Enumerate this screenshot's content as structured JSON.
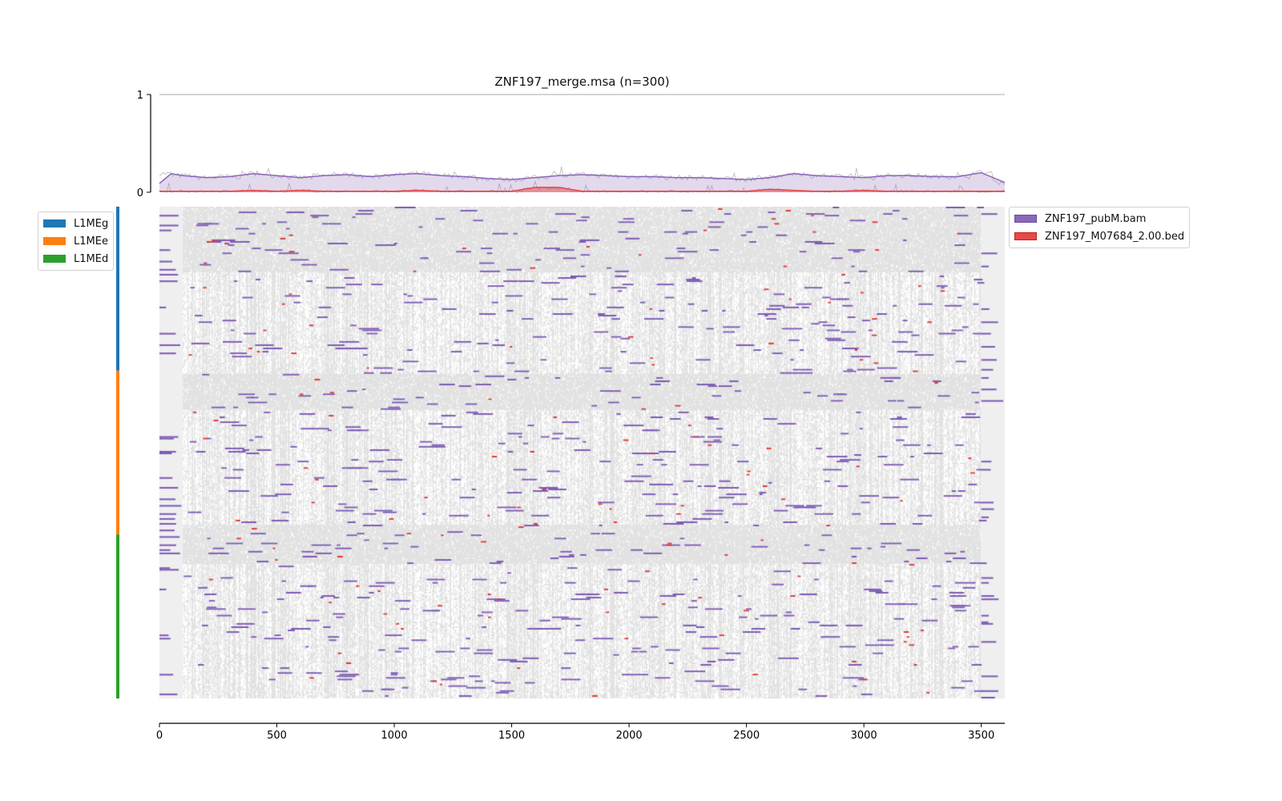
{
  "chart_data": {
    "type": "heatmap",
    "title": "ZNF197_merge.msa (n=300)",
    "n_sequences": 300,
    "xlim": [
      0,
      3600
    ],
    "xticks": [
      "0",
      "500",
      "1000",
      "1500",
      "2000",
      "2500",
      "3000",
      "3500"
    ],
    "profile": {
      "ylim": [
        0,
        1
      ],
      "yticks": [
        "0",
        "1"
      ],
      "x": [
        0,
        50,
        100,
        200,
        300,
        400,
        500,
        600,
        700,
        800,
        900,
        1000,
        1100,
        1200,
        1300,
        1400,
        1500,
        1600,
        1700,
        1800,
        1900,
        2000,
        2100,
        2200,
        2300,
        2400,
        2500,
        2600,
        2700,
        2800,
        2900,
        3000,
        3100,
        3200,
        3300,
        3400,
        3500,
        3600
      ],
      "series": [
        {
          "name": "ZNF197_pubM.bam",
          "color": "#8a67b8",
          "values": [
            0.09,
            0.19,
            0.17,
            0.15,
            0.16,
            0.19,
            0.17,
            0.15,
            0.17,
            0.18,
            0.16,
            0.18,
            0.19,
            0.17,
            0.16,
            0.14,
            0.13,
            0.15,
            0.17,
            0.18,
            0.17,
            0.16,
            0.16,
            0.15,
            0.15,
            0.14,
            0.13,
            0.15,
            0.19,
            0.17,
            0.16,
            0.15,
            0.17,
            0.17,
            0.16,
            0.16,
            0.2,
            0.1
          ]
        },
        {
          "name": "ZNF197_M07684_2.00.bed",
          "color": "#e84848",
          "values": [
            0.01,
            0.01,
            0.01,
            0.01,
            0.01,
            0.02,
            0.01,
            0.02,
            0.01,
            0.01,
            0.01,
            0.01,
            0.02,
            0.01,
            0.01,
            0.01,
            0.01,
            0.05,
            0.05,
            0.01,
            0.01,
            0.01,
            0.01,
            0.01,
            0.01,
            0.01,
            0.01,
            0.03,
            0.02,
            0.01,
            0.01,
            0.02,
            0.01,
            0.01,
            0.01,
            0.01,
            0.01,
            0.01
          ]
        }
      ]
    },
    "groups": [
      {
        "name": "L1MEg",
        "color": "#1f77b4",
        "rows": 100
      },
      {
        "name": "L1MEe",
        "color": "#ff7f0e",
        "rows": 100
      },
      {
        "name": "L1MEd",
        "color": "#2ca02c",
        "rows": 100
      }
    ],
    "legend_tracks": [
      "ZNF197_pubM.bam",
      "ZNF197_M07684_2.00.bed"
    ]
  }
}
